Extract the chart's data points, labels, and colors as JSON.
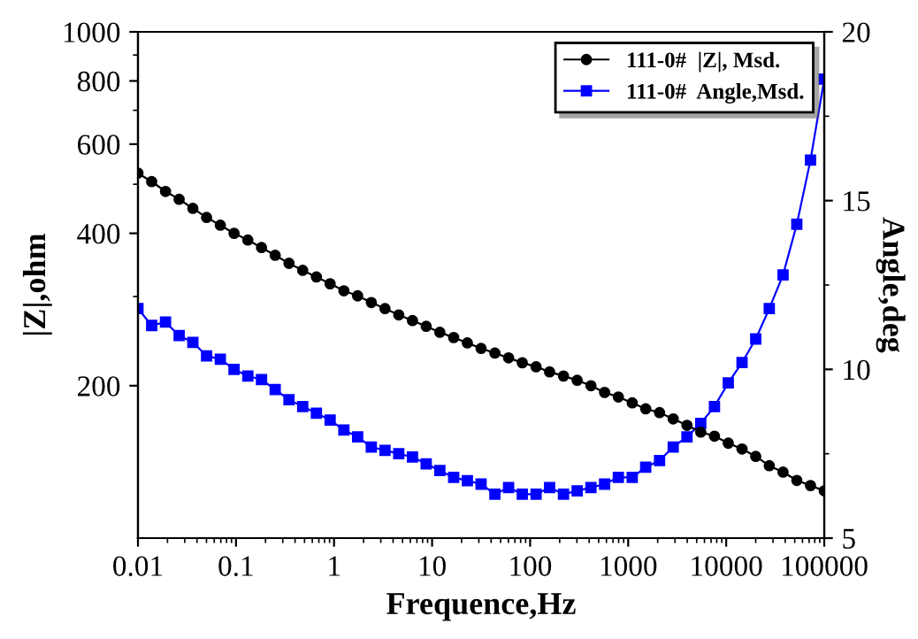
{
  "chart_data": {
    "type": "line",
    "xlabel": "Frequence,Hz",
    "ylabel": "|Z|,ohm",
    "y2label": "Angle,deg",
    "log": "xy",
    "xlim": [
      0.01,
      100000
    ],
    "xticks": [
      0.01,
      0.1,
      1,
      10,
      100,
      1000,
      10000,
      100000
    ],
    "ylim": [
      100,
      1000
    ],
    "yticks": [
      200,
      400,
      600,
      800,
      1000
    ],
    "y2lim": [
      5,
      20
    ],
    "y2ticks": [
      5,
      10,
      15,
      20
    ],
    "legend": "top right",
    "grid": false,
    "line_style": "solid",
    "x": [
      0.01,
      0.0138,
      0.0191,
      0.0263,
      0.0363,
      0.0501,
      0.0692,
      0.0955,
      0.132,
      0.182,
      0.251,
      0.347,
      0.479,
      0.661,
      0.912,
      1.26,
      1.74,
      2.4,
      3.31,
      4.57,
      6.31,
      8.71,
      12.0,
      16.6,
      22.9,
      31.6,
      43.7,
      60.3,
      83.2,
      115,
      158,
      219,
      302,
      417,
      575,
      794,
      1100,
      1510,
      2090,
      2880,
      3980,
      5500,
      7590,
      10500,
      14500,
      20000,
      27500,
      38000,
      52500,
      72400,
      100000
    ],
    "series": [
      {
        "name": "111-0#  |Z|, Msd.",
        "color": "#000000",
        "marker": "circle",
        "values": [
          526,
          506,
          484,
          467,
          448,
          430,
          415,
          400,
          388,
          375,
          362,
          349,
          338,
          328,
          318,
          308,
          301,
          292,
          284,
          276,
          269,
          262,
          255,
          249,
          243,
          237,
          232,
          227,
          222,
          218,
          213,
          209,
          205,
          200,
          194,
          190,
          185,
          180,
          177,
          172,
          167,
          162,
          159,
          154,
          150,
          145,
          139,
          135,
          130,
          127,
          124
        ]
      },
      {
        "name": "111-0#  Angle,Msd.",
        "color": "#0000ff",
        "marker": "square",
        "axis": "y2",
        "values": [
          11.8,
          11.3,
          11.4,
          11.0,
          10.8,
          10.4,
          10.3,
          10.0,
          9.8,
          9.7,
          9.4,
          9.1,
          8.9,
          8.7,
          8.5,
          8.2,
          8.0,
          7.7,
          7.6,
          7.5,
          7.4,
          7.2,
          7.0,
          6.8,
          6.7,
          6.6,
          6.3,
          6.5,
          6.3,
          6.3,
          6.5,
          6.3,
          6.4,
          6.5,
          6.6,
          6.8,
          6.8,
          7.1,
          7.3,
          7.7,
          8.0,
          8.4,
          8.9,
          9.6,
          10.2,
          10.9,
          11.8,
          12.8,
          14.3,
          16.2,
          18.6
        ]
      }
    ]
  }
}
